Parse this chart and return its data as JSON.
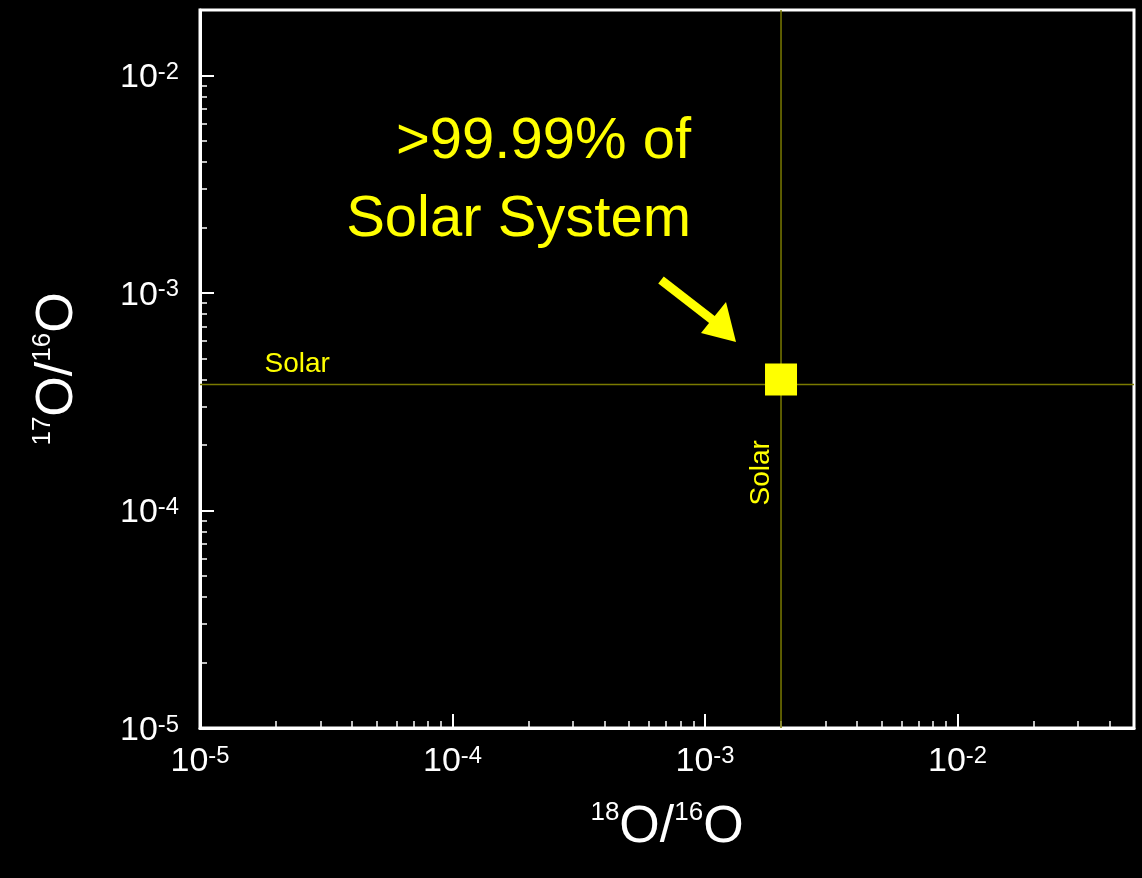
{
  "chart_data": {
    "type": "scatter",
    "xlabel": "$^{18}$O/$^{16}$O",
    "ylabel": "$^{17}$O/$^{16}$O",
    "log": "xy",
    "xlim": [
      1e-05,
      0.05
    ],
    "ylim": [
      1e-05,
      0.02
    ],
    "xticks": [
      {
        "value": 1e-05,
        "label": "10$^{-5}$"
      },
      {
        "value": 0.0001,
        "label": "10$^{-4}$"
      },
      {
        "value": 0.001,
        "label": "10$^{-3}$"
      },
      {
        "value": 0.01,
        "label": "10$^{-2}$"
      }
    ],
    "yticks": [
      {
        "value": 1e-05,
        "label": "10$^{-5}$"
      },
      {
        "value": 0.0001,
        "label": "10$^{-4}$"
      },
      {
        "value": 0.001,
        "label": "10$^{-3}$"
      },
      {
        "value": 0.01,
        "label": "10$^{-2}$"
      }
    ],
    "series": [
      {
        "color": "#ffff00",
        "x": [
          0.002
        ],
        "values": [
          0.0004
        ]
      }
    ],
    "marker": "square",
    "grid": false,
    "ref_lines": [
      {
        "axis": "y",
        "value": 0.00038,
        "label": "Solar",
        "color": "#7a7a00"
      },
      {
        "axis": "x",
        "value": 0.002,
        "label": "Solar",
        "color": "#7a7a00"
      }
    ],
    "annotations": [
      {
        "text": ">99.99% of\nSolar System",
        "x": 0.002,
        "y": 0.0004
      }
    ]
  }
}
